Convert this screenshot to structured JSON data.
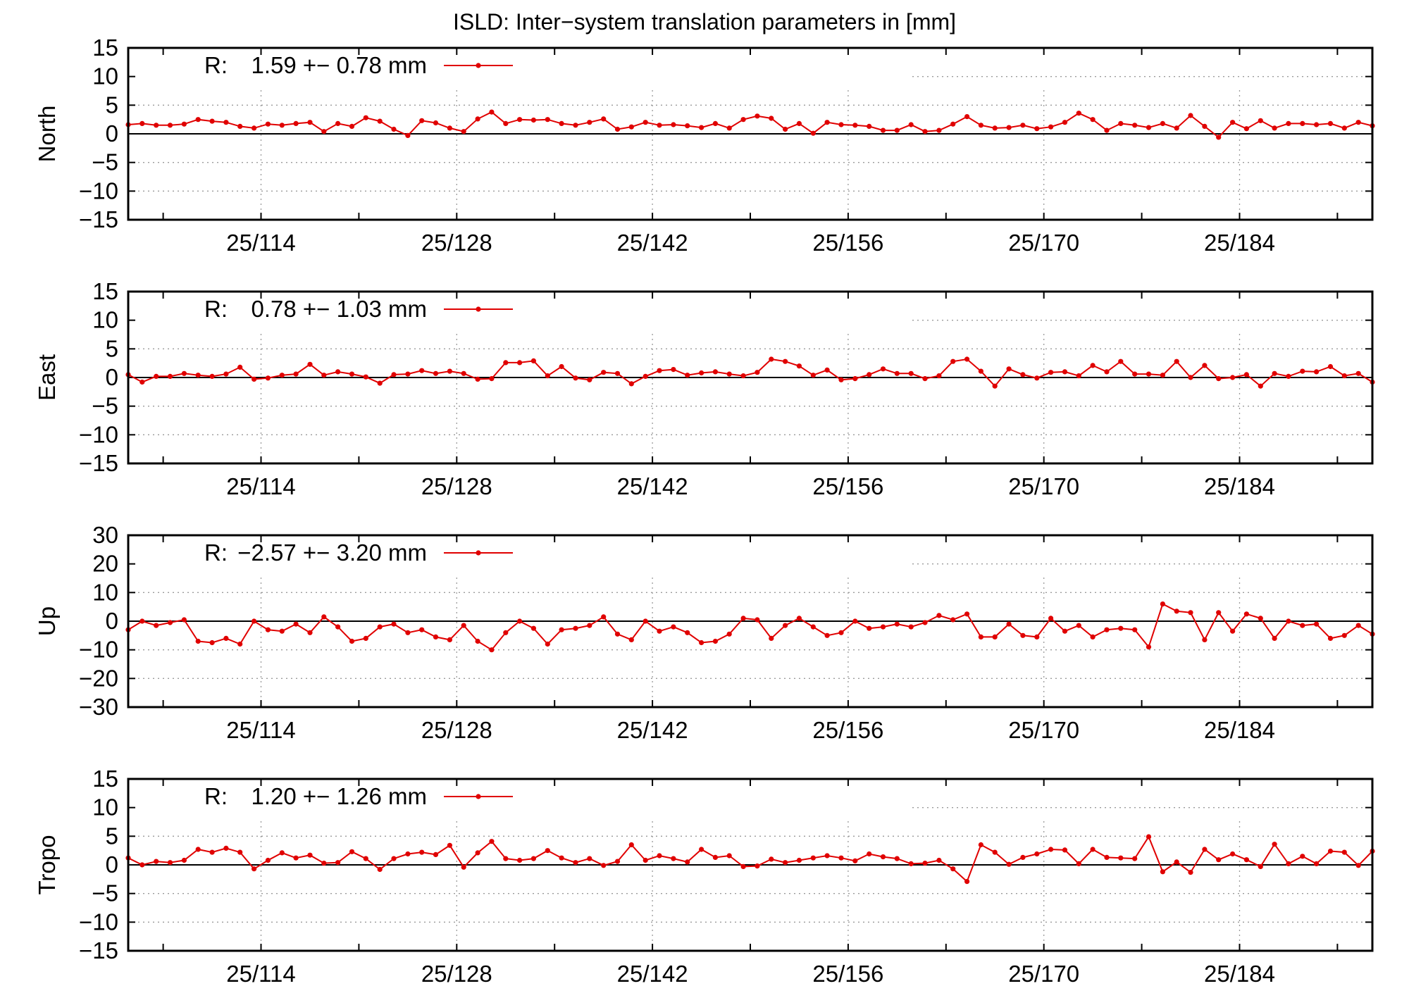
{
  "title": "ISLD: Inter−system translation parameters in [mm]",
  "colors": {
    "series": "#e00000",
    "axis": "#000000",
    "grid": "#9a9a9a"
  },
  "chart_data": [
    {
      "type": "line",
      "ylabel": "North",
      "ylim": [
        -15,
        15
      ],
      "yticks": [
        "15",
        "10",
        "5",
        "0",
        "−5",
        "−10",
        "−15"
      ],
      "ytick_values": [
        15,
        10,
        5,
        0,
        -5,
        -10,
        -15
      ],
      "xlim": [
        104.5,
        193.5
      ],
      "xticks": [
        "25/114",
        "25/128",
        "25/142",
        "25/156",
        "25/170",
        "25/184"
      ],
      "xtick_values": [
        114,
        128,
        142,
        156,
        170,
        184
      ],
      "grid": true,
      "legend": {
        "prefix": "R:",
        "text": "1.59 +− 0.78 mm",
        "position": "top-left"
      },
      "series": [
        {
          "x_start": 104.5,
          "x_step": 1,
          "values": [
            1.6,
            1.8,
            1.5,
            1.5,
            1.7,
            2.5,
            2.2,
            2.0,
            1.3,
            1.0,
            1.7,
            1.5,
            1.8,
            2.0,
            0.4,
            1.8,
            1.3,
            2.8,
            2.2,
            0.8,
            -0.3,
            2.3,
            1.9,
            1.0,
            0.4,
            2.6,
            3.8,
            1.8,
            2.5,
            2.4,
            2.5,
            1.8,
            1.5,
            2.0,
            2.6,
            0.8,
            1.2,
            2.0,
            1.5,
            1.6,
            1.4,
            1.1,
            1.8,
            1.0,
            2.5,
            3.1,
            2.7,
            0.8,
            1.8,
            0.1,
            2.0,
            1.6,
            1.5,
            1.3,
            0.6,
            0.6,
            1.6,
            0.4,
            0.6,
            1.7,
            3.0,
            1.5,
            1.0,
            1.1,
            1.5,
            0.9,
            1.2,
            2.0,
            3.6,
            2.5,
            0.6,
            1.8,
            1.5,
            1.1,
            1.8,
            1.0,
            3.2,
            1.3,
            -0.6,
            2.0,
            0.9,
            2.3,
            1.0,
            1.8,
            1.8,
            1.6,
            1.8,
            1.0,
            2.0,
            1.4
          ]
        }
      ]
    },
    {
      "type": "line",
      "ylabel": "East",
      "ylim": [
        -15,
        15
      ],
      "yticks": [
        "15",
        "10",
        "5",
        "0",
        "−5",
        "−10",
        "−15"
      ],
      "ytick_values": [
        15,
        10,
        5,
        0,
        -5,
        -10,
        -15
      ],
      "xlim": [
        104.5,
        193.5
      ],
      "xticks": [
        "25/114",
        "25/128",
        "25/142",
        "25/156",
        "25/170",
        "25/184"
      ],
      "xtick_values": [
        114,
        128,
        142,
        156,
        170,
        184
      ],
      "grid": true,
      "legend": {
        "prefix": "R:",
        "text": "0.78 +− 1.03 mm",
        "position": "top-left"
      },
      "series": [
        {
          "x_start": 104.5,
          "x_step": 1,
          "values": [
            0.5,
            -0.8,
            0.2,
            0.2,
            0.7,
            0.4,
            0.2,
            0.6,
            1.8,
            -0.3,
            -0.1,
            0.4,
            0.6,
            2.3,
            0.4,
            1.0,
            0.6,
            0.1,
            -1.0,
            0.5,
            0.6,
            1.2,
            0.7,
            1.1,
            0.7,
            -0.3,
            -0.2,
            2.6,
            2.6,
            2.9,
            0.3,
            1.9,
            -0.1,
            -0.4,
            0.9,
            0.7,
            -1.1,
            0.2,
            1.2,
            1.4,
            0.4,
            0.8,
            1.0,
            0.6,
            0.3,
            0.9,
            3.2,
            2.8,
            2.0,
            0.4,
            1.3,
            -0.4,
            -0.2,
            0.5,
            1.5,
            0.7,
            0.7,
            -0.2,
            0.3,
            2.8,
            3.2,
            1.1,
            -1.5,
            1.5,
            0.5,
            -0.1,
            0.9,
            1.0,
            0.3,
            2.1,
            1.0,
            2.8,
            0.6,
            0.6,
            0.4,
            2.8,
            0.0,
            2.1,
            -0.2,
            0.0,
            0.5,
            -1.5,
            0.7,
            0.2,
            1.1,
            1.0,
            1.9,
            0.3,
            0.7,
            -0.8
          ]
        }
      ]
    },
    {
      "type": "line",
      "ylabel": "Up",
      "ylim": [
        -30,
        30
      ],
      "yticks": [
        "30",
        "20",
        "10",
        "0",
        "−10",
        "−20",
        "−30"
      ],
      "ytick_values": [
        30,
        20,
        10,
        0,
        -10,
        -20,
        -30
      ],
      "xlim": [
        104.5,
        193.5
      ],
      "xticks": [
        "25/114",
        "25/128",
        "25/142",
        "25/156",
        "25/170",
        "25/184"
      ],
      "xtick_values": [
        114,
        128,
        142,
        156,
        170,
        184
      ],
      "grid": true,
      "legend": {
        "prefix": "R:",
        "text": "−2.57 +− 3.20 mm",
        "position": "top-left"
      },
      "series": [
        {
          "x_start": 104.5,
          "x_step": 1,
          "values": [
            -3.0,
            0.0,
            -1.5,
            -0.5,
            0.5,
            -7.0,
            -7.5,
            -6.0,
            -8.0,
            0.0,
            -3.0,
            -3.5,
            -1.0,
            -4.0,
            1.5,
            -2.0,
            -7.0,
            -6.0,
            -2.0,
            -1.0,
            -4.0,
            -3.0,
            -5.5,
            -6.5,
            -1.5,
            -7.0,
            -10.0,
            -4.0,
            0.0,
            -2.5,
            -8.0,
            -3.0,
            -2.5,
            -1.5,
            1.5,
            -4.5,
            -6.5,
            0.0,
            -3.5,
            -2.0,
            -4.0,
            -7.5,
            -7.0,
            -4.5,
            1.0,
            0.5,
            -6.0,
            -1.5,
            1.0,
            -2.0,
            -5.0,
            -4.0,
            0.0,
            -2.5,
            -2.0,
            -1.0,
            -2.0,
            -0.5,
            2.0,
            0.5,
            2.5,
            -5.5,
            -5.5,
            -1.0,
            -5.0,
            -5.5,
            1.0,
            -3.5,
            -1.5,
            -5.5,
            -3.0,
            -2.5,
            -3.0,
            -9.0,
            6.0,
            3.5,
            3.0,
            -6.5,
            3.0,
            -3.5,
            2.5,
            1.0,
            -6.0,
            0.0,
            -1.5,
            -1.0,
            -6.0,
            -5.0,
            -1.5,
            -4.5
          ]
        }
      ]
    },
    {
      "type": "line",
      "ylabel": "Tropo",
      "ylim": [
        -15,
        15
      ],
      "yticks": [
        "15",
        "10",
        "5",
        "0",
        "−5",
        "−10",
        "−15"
      ],
      "ytick_values": [
        15,
        10,
        5,
        0,
        -5,
        -10,
        -15
      ],
      "xlim": [
        104.5,
        193.5
      ],
      "xticks": [
        "25/114",
        "25/128",
        "25/142",
        "25/156",
        "25/170",
        "25/184"
      ],
      "xtick_values": [
        114,
        128,
        142,
        156,
        170,
        184
      ],
      "grid": true,
      "legend": {
        "prefix": "R:",
        "text": "1.20 +− 1.26 mm",
        "position": "top-left"
      },
      "series": [
        {
          "x_start": 104.5,
          "x_step": 1,
          "values": [
            1.2,
            0.0,
            0.6,
            0.4,
            0.8,
            2.7,
            2.2,
            2.9,
            2.2,
            -0.7,
            0.8,
            2.1,
            1.2,
            1.7,
            0.3,
            0.4,
            2.3,
            1.1,
            -0.8,
            1.1,
            1.9,
            2.2,
            1.8,
            3.4,
            -0.4,
            2.1,
            4.1,
            1.1,
            0.8,
            1.1,
            2.5,
            1.2,
            0.4,
            1.1,
            -0.1,
            0.6,
            3.5,
            0.8,
            1.6,
            1.1,
            0.5,
            2.7,
            1.3,
            1.6,
            -0.3,
            -0.2,
            1.0,
            0.4,
            0.8,
            1.2,
            1.6,
            1.2,
            0.7,
            1.9,
            1.4,
            1.1,
            0.2,
            0.3,
            0.8,
            -0.7,
            -2.9,
            3.5,
            2.2,
            0.1,
            1.3,
            1.9,
            2.7,
            2.6,
            0.2,
            2.7,
            1.3,
            1.2,
            1.1,
            4.9,
            -1.2,
            0.5,
            -1.3,
            2.7,
            0.9,
            1.9,
            0.9,
            -0.3,
            3.6,
            0.2,
            1.5,
            0.2,
            2.4,
            2.2,
            -0.1,
            2.4
          ]
        }
      ]
    }
  ]
}
